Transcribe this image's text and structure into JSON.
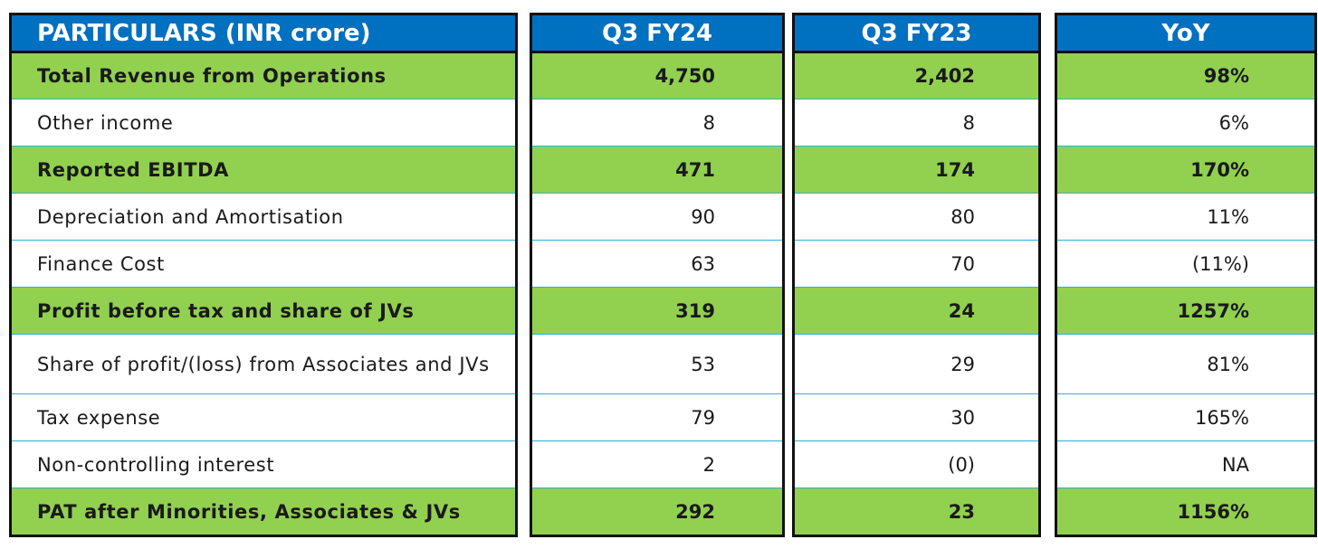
{
  "columns": {
    "particulars": "PARTICULARS (INR crore)",
    "q3fy24": "Q3 FY24",
    "q3fy23": "Q3 FY23",
    "yoy": "YoY"
  },
  "rows": [
    {
      "label": "Total Revenue from Operations",
      "q3fy24": "4,750",
      "q3fy23": "2,402",
      "yoy": "98%",
      "highlight": true
    },
    {
      "label": "Other income",
      "q3fy24": "8",
      "q3fy23": "8",
      "yoy": "6%",
      "highlight": false
    },
    {
      "label": "Reported EBITDA",
      "q3fy24": "471",
      "q3fy23": "174",
      "yoy": "170%",
      "highlight": true
    },
    {
      "label": "Depreciation and Amortisation",
      "q3fy24": "90",
      "q3fy23": "80",
      "yoy": "11%",
      "highlight": false
    },
    {
      "label": "Finance Cost",
      "q3fy24": "63",
      "q3fy23": "70",
      "yoy": "(11%)",
      "highlight": false
    },
    {
      "label": "Profit before tax and share of JVs",
      "q3fy24": "319",
      "q3fy23": "24",
      "yoy": "1257%",
      "highlight": true
    },
    {
      "label": "Share of profit/(loss) from Associates and JVs",
      "q3fy24": "53",
      "q3fy23": "29",
      "yoy": "81%",
      "highlight": false
    },
    {
      "label": "Tax expense",
      "q3fy24": "79",
      "q3fy23": "30",
      "yoy": "165%",
      "highlight": false
    },
    {
      "label": "Non-controlling interest",
      "q3fy24": "2",
      "q3fy23": "(0)",
      "yoy": "NA",
      "highlight": false
    },
    {
      "label": "PAT after Minorities, Associates & JVs",
      "q3fy24": "292",
      "q3fy23": "23",
      "yoy": "1156%",
      "highlight": true
    }
  ],
  "colors": {
    "header": "#0070c0",
    "highlight": "#92d050",
    "divider": "#2bb3d6"
  }
}
